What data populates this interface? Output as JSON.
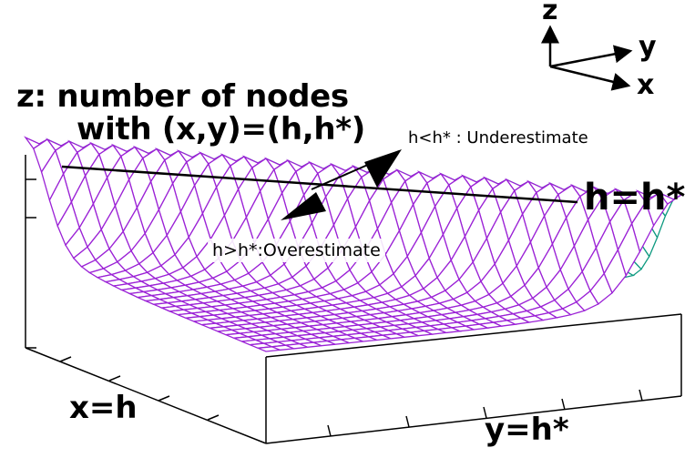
{
  "labels": {
    "z_title_line1": "z: number of nodes",
    "z_title_line2": "with (x,y)=(h,h*)",
    "underestimate": "h<h* : Underestimate",
    "overestimate": "h>h*:Overestimate",
    "diagonal": "h=h*",
    "x_axis": "x=h",
    "y_axis": "y=h*"
  },
  "axis_indicator": {
    "z": "z",
    "y": "y",
    "x": "x"
  },
  "colors": {
    "mesh_top": "#9b22d6",
    "mesh_side": "#0e9a80",
    "frame": "#000000"
  }
}
